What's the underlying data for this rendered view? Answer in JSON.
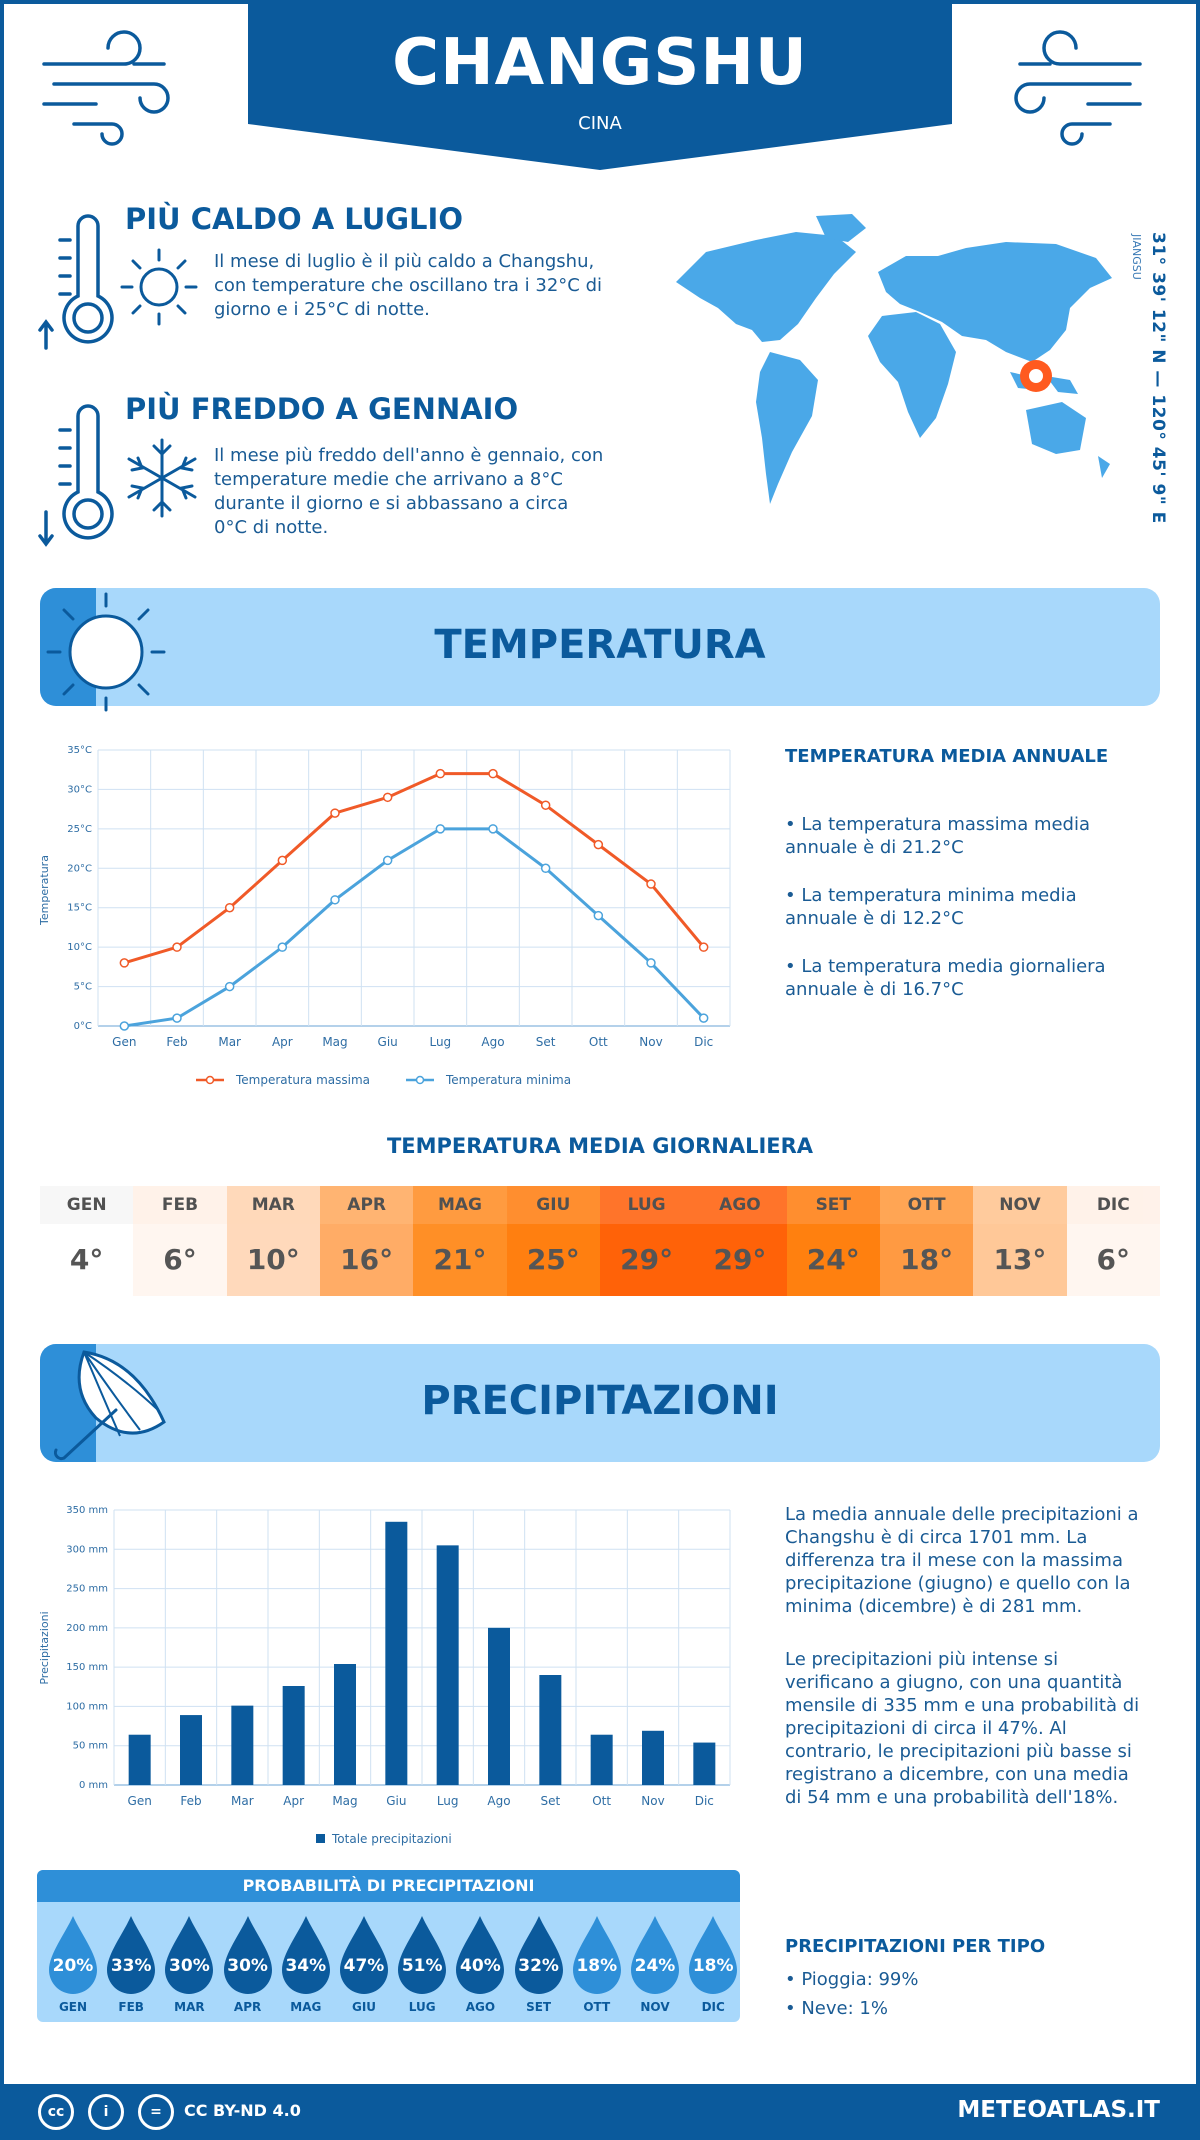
{
  "header": {
    "city": "CHANGSHU",
    "country": "CINA"
  },
  "facts": {
    "hot_title": "PIÙ CALDO A LUGLIO",
    "hot_text": "Il mese di luglio è il più caldo a Changshu, con temperature che oscillano tra i 32°C di giorno e i 25°C di notte.",
    "cold_title": "PIÙ FREDDO A GENNAIO",
    "cold_text": "Il mese più freddo dell'anno è gennaio, con temperature medie che arrivano a 8°C durante il giorno e si abbassano a circa 0°C di notte."
  },
  "location": {
    "coords": "31° 39' 12\" N — 120° 45' 9\" E",
    "region": "JIANGSU"
  },
  "temperature_section": {
    "title": "TEMPERATURA",
    "side_title": "TEMPERATURA MEDIA ANNUALE",
    "bullet1": "• La temperatura massima media annuale è di 21.2°C",
    "bullet2": "• La temperatura minima media annuale è di 12.2°C",
    "bullet3": "• La temperatura media giornaliera annuale è di 16.7°C"
  },
  "daily_table": {
    "title": "TEMPERATURA MEDIA GIORNALIERA",
    "months": [
      "GEN",
      "FEB",
      "MAR",
      "APR",
      "MAG",
      "GIU",
      "LUG",
      "AGO",
      "SET",
      "OTT",
      "NOV",
      "DIC"
    ],
    "values": [
      "4°",
      "6°",
      "10°",
      "16°",
      "21°",
      "25°",
      "29°",
      "29°",
      "24°",
      "18°",
      "13°",
      "6°"
    ],
    "head_colors": [
      "#f6f6f6",
      "#fff0e6",
      "#ffd3ae",
      "#ffa75a",
      "#ff8a1f",
      "#ff7b0b",
      "#ff5c05",
      "#ff5c05",
      "#ff7b0b",
      "#ff9637",
      "#ffc28c",
      "#fff0e6"
    ],
    "cell_colors": [
      "#ffffff",
      "#fff6f0",
      "#ffd9bb",
      "#ffac66",
      "#ff8f26",
      "#ff7f10",
      "#ff6208",
      "#ff6208",
      "#ff800f",
      "#ff9a42",
      "#ffc898",
      "#fff6f0"
    ]
  },
  "precip_section": {
    "title": "PRECIPITAZIONI",
    "text1": "La media annuale delle precipitazioni a Changshu è di circa 1701 mm. La differenza tra il mese con la massima precipitazione (giugno) e quello con la minima (dicembre) è di 281 mm.",
    "text2": "Le precipitazioni più intense si verificano a giugno, con una quantità mensile di 335 mm e una probabilità di precipitazioni di circa il 47%. Al contrario, le precipitazioni più basse si registrano a dicembre, con una media di 54 mm e una probabilità dell'18%.",
    "type_title": "PRECIPITAZIONI PER TIPO",
    "rain": "• Pioggia: 99%",
    "snow": "• Neve: 1%"
  },
  "probability": {
    "title": "PROBABILITÀ DI PRECIPITAZIONI",
    "months": [
      "GEN",
      "FEB",
      "MAR",
      "APR",
      "MAG",
      "GIU",
      "LUG",
      "AGO",
      "SET",
      "OTT",
      "NOV",
      "DIC"
    ],
    "values": [
      "20%",
      "33%",
      "30%",
      "30%",
      "34%",
      "47%",
      "51%",
      "40%",
      "32%",
      "18%",
      "24%",
      "18%"
    ],
    "colors": [
      "#2e8fd8",
      "#0b5a9c",
      "#0b5a9c",
      "#0b5a9c",
      "#0b5a9c",
      "#0b5a9c",
      "#0b5a9c",
      "#0b5a9c",
      "#0b5a9c",
      "#2e8fd8",
      "#2e8fd8",
      "#2e8fd8"
    ]
  },
  "footer": {
    "license": "CC BY-ND 4.0",
    "brand": "METEOATLAS.IT"
  },
  "chart_data": [
    {
      "type": "line",
      "ylabel": "Temperatura",
      "categories": [
        "Gen",
        "Feb",
        "Mar",
        "Apr",
        "Mag",
        "Giu",
        "Lug",
        "Ago",
        "Set",
        "Ott",
        "Nov",
        "Dic"
      ],
      "yticks": [
        "0°C",
        "5°C",
        "10°C",
        "15°C",
        "20°C",
        "25°C",
        "30°C",
        "35°C"
      ],
      "ylim": [
        0,
        35
      ],
      "series": [
        {
          "name": "Temperatura massima",
          "color": "#f05a28",
          "values": [
            8,
            10,
            15,
            21,
            27,
            29,
            32,
            32,
            28,
            23,
            18,
            10
          ]
        },
        {
          "name": "Temperatura minima",
          "color": "#4ba3dc",
          "values": [
            0,
            1,
            5,
            10,
            16,
            21,
            25,
            25,
            20,
            14,
            8,
            1
          ]
        }
      ],
      "legend": "bottom",
      "grid": true
    },
    {
      "type": "bar",
      "ylabel": "Precipitazioni",
      "categories": [
        "Gen",
        "Feb",
        "Mar",
        "Apr",
        "Mag",
        "Giu",
        "Lug",
        "Ago",
        "Set",
        "Ott",
        "Nov",
        "Dic"
      ],
      "yticks": [
        "0 mm",
        "50 mm",
        "100 mm",
        "150 mm",
        "200 mm",
        "250 mm",
        "300 mm",
        "350 mm"
      ],
      "ylim": [
        0,
        350
      ],
      "series": [
        {
          "name": "Totale precipitazioni",
          "color": "#0b5a9c",
          "values": [
            64,
            89,
            101,
            126,
            154,
            335,
            305,
            200,
            140,
            64,
            69,
            54
          ]
        }
      ],
      "legend": "bottom",
      "grid": true
    }
  ]
}
